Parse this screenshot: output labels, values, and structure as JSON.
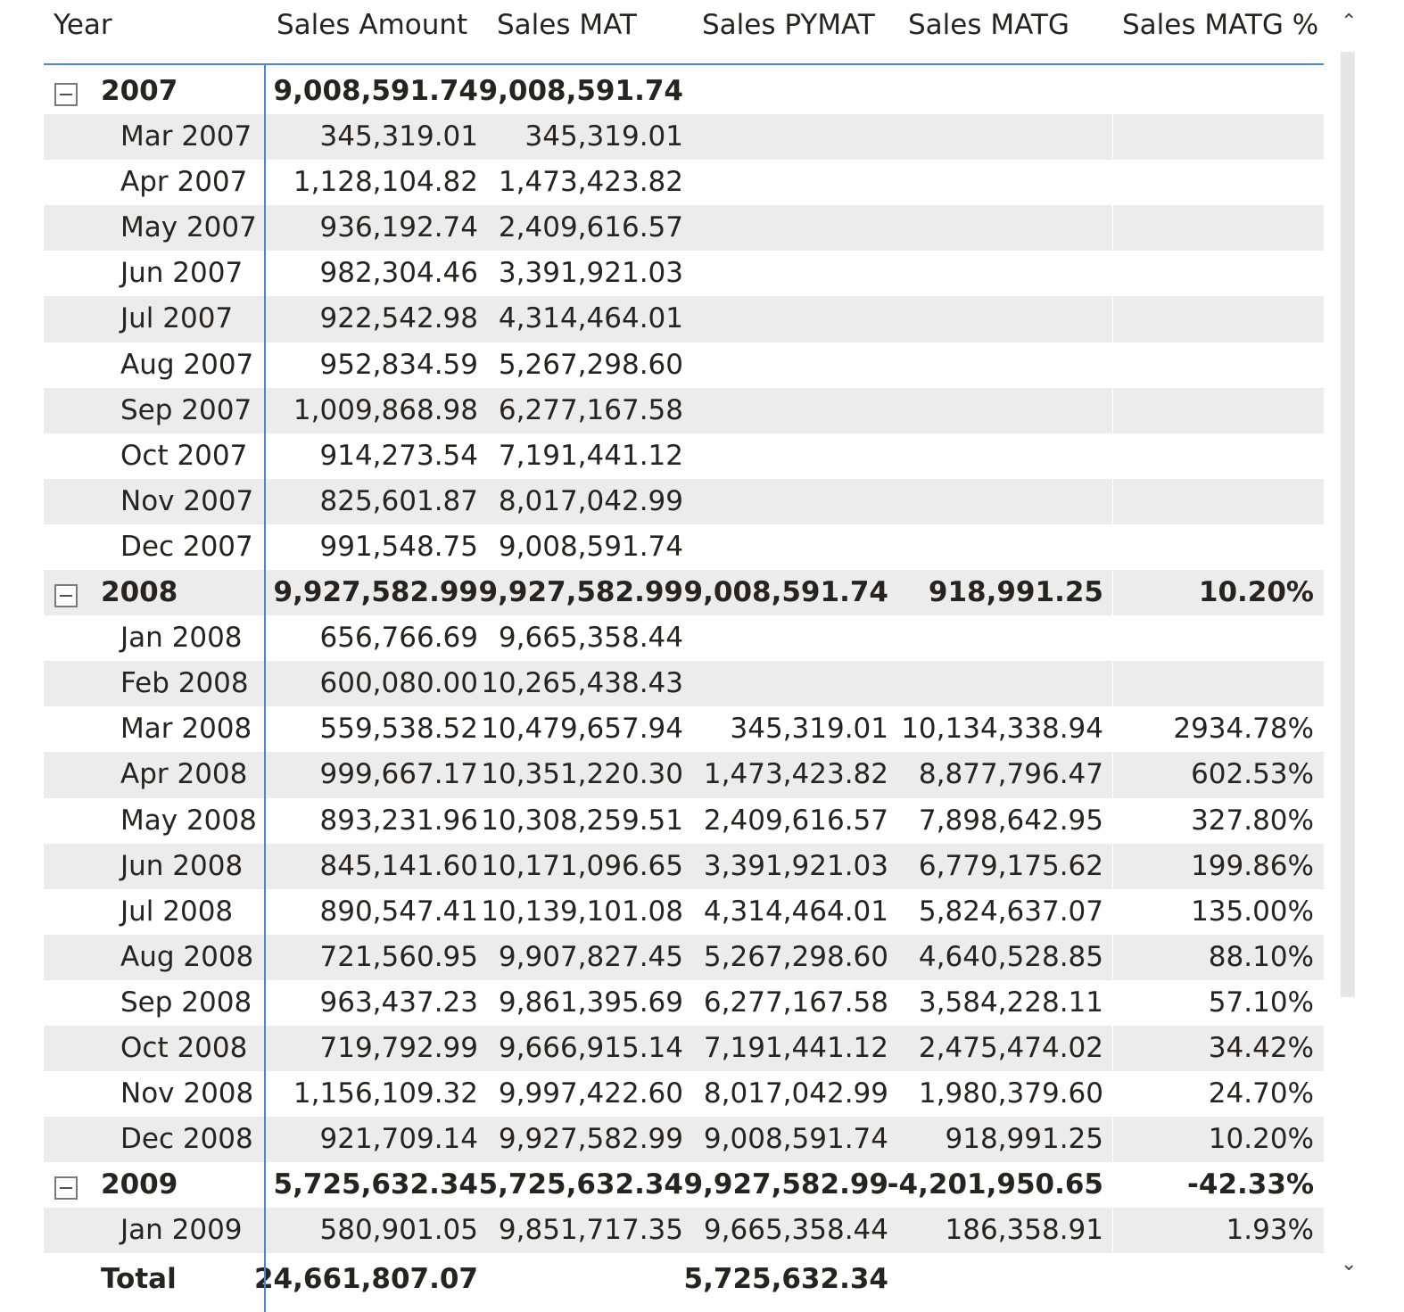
{
  "columns": [
    "Year",
    "Sales Amount",
    "Sales MAT",
    "Sales PYMAT",
    "Sales MATG",
    "Sales MATG %"
  ],
  "rows": [
    {
      "type": "year",
      "label": "2007",
      "amount": "9,008,591.74",
      "mat": "9,008,591.74",
      "pymat": "",
      "matg": "",
      "matgp": ""
    },
    {
      "type": "month",
      "label": "Mar 2007",
      "amount": "345,319.01",
      "mat": "345,319.01",
      "pymat": "",
      "matg": "",
      "matgp": ""
    },
    {
      "type": "month",
      "label": "Apr 2007",
      "amount": "1,128,104.82",
      "mat": "1,473,423.82",
      "pymat": "",
      "matg": "",
      "matgp": ""
    },
    {
      "type": "month",
      "label": "May 2007",
      "amount": "936,192.74",
      "mat": "2,409,616.57",
      "pymat": "",
      "matg": "",
      "matgp": ""
    },
    {
      "type": "month",
      "label": "Jun 2007",
      "amount": "982,304.46",
      "mat": "3,391,921.03",
      "pymat": "",
      "matg": "",
      "matgp": ""
    },
    {
      "type": "month",
      "label": "Jul 2007",
      "amount": "922,542.98",
      "mat": "4,314,464.01",
      "pymat": "",
      "matg": "",
      "matgp": ""
    },
    {
      "type": "month",
      "label": "Aug 2007",
      "amount": "952,834.59",
      "mat": "5,267,298.60",
      "pymat": "",
      "matg": "",
      "matgp": ""
    },
    {
      "type": "month",
      "label": "Sep 2007",
      "amount": "1,009,868.98",
      "mat": "6,277,167.58",
      "pymat": "",
      "matg": "",
      "matgp": ""
    },
    {
      "type": "month",
      "label": "Oct 2007",
      "amount": "914,273.54",
      "mat": "7,191,441.12",
      "pymat": "",
      "matg": "",
      "matgp": ""
    },
    {
      "type": "month",
      "label": "Nov 2007",
      "amount": "825,601.87",
      "mat": "8,017,042.99",
      "pymat": "",
      "matg": "",
      "matgp": ""
    },
    {
      "type": "month",
      "label": "Dec 2007",
      "amount": "991,548.75",
      "mat": "9,008,591.74",
      "pymat": "",
      "matg": "",
      "matgp": ""
    },
    {
      "type": "year",
      "label": "2008",
      "amount": "9,927,582.99",
      "mat": "9,927,582.99",
      "pymat": "9,008,591.74",
      "matg": "918,991.25",
      "matgp": "10.20%"
    },
    {
      "type": "month",
      "label": "Jan 2008",
      "amount": "656,766.69",
      "mat": "9,665,358.44",
      "pymat": "",
      "matg": "",
      "matgp": ""
    },
    {
      "type": "month",
      "label": "Feb 2008",
      "amount": "600,080.00",
      "mat": "10,265,438.43",
      "pymat": "",
      "matg": "",
      "matgp": ""
    },
    {
      "type": "month",
      "label": "Mar 2008",
      "amount": "559,538.52",
      "mat": "10,479,657.94",
      "pymat": "345,319.01",
      "matg": "10,134,338.94",
      "matgp": "2934.78%"
    },
    {
      "type": "month",
      "label": "Apr 2008",
      "amount": "999,667.17",
      "mat": "10,351,220.30",
      "pymat": "1,473,423.82",
      "matg": "8,877,796.47",
      "matgp": "602.53%"
    },
    {
      "type": "month",
      "label": "May 2008",
      "amount": "893,231.96",
      "mat": "10,308,259.51",
      "pymat": "2,409,616.57",
      "matg": "7,898,642.95",
      "matgp": "327.80%"
    },
    {
      "type": "month",
      "label": "Jun 2008",
      "amount": "845,141.60",
      "mat": "10,171,096.65",
      "pymat": "3,391,921.03",
      "matg": "6,779,175.62",
      "matgp": "199.86%"
    },
    {
      "type": "month",
      "label": "Jul 2008",
      "amount": "890,547.41",
      "mat": "10,139,101.08",
      "pymat": "4,314,464.01",
      "matg": "5,824,637.07",
      "matgp": "135.00%"
    },
    {
      "type": "month",
      "label": "Aug 2008",
      "amount": "721,560.95",
      "mat": "9,907,827.45",
      "pymat": "5,267,298.60",
      "matg": "4,640,528.85",
      "matgp": "88.10%"
    },
    {
      "type": "month",
      "label": "Sep 2008",
      "amount": "963,437.23",
      "mat": "9,861,395.69",
      "pymat": "6,277,167.58",
      "matg": "3,584,228.11",
      "matgp": "57.10%"
    },
    {
      "type": "month",
      "label": "Oct 2008",
      "amount": "719,792.99",
      "mat": "9,666,915.14",
      "pymat": "7,191,441.12",
      "matg": "2,475,474.02",
      "matgp": "34.42%"
    },
    {
      "type": "month",
      "label": "Nov 2008",
      "amount": "1,156,109.32",
      "mat": "9,997,422.60",
      "pymat": "8,017,042.99",
      "matg": "1,980,379.60",
      "matgp": "24.70%"
    },
    {
      "type": "month",
      "label": "Dec 2008",
      "amount": "921,709.14",
      "mat": "9,927,582.99",
      "pymat": "9,008,591.74",
      "matg": "918,991.25",
      "matgp": "10.20%"
    },
    {
      "type": "year",
      "label": "2009",
      "amount": "5,725,632.34",
      "mat": "5,725,632.34",
      "pymat": "9,927,582.99",
      "matg": "-4,201,950.65",
      "matgp": "-42.33%"
    },
    {
      "type": "month",
      "label": "Jan 2009",
      "amount": "580,901.05",
      "mat": "9,851,717.35",
      "pymat": "9,665,358.44",
      "matg": "186,358.91",
      "matgp": "1.93%"
    },
    {
      "type": "total",
      "label": "Total",
      "amount": "24,661,807.07",
      "mat": "",
      "pymat": "5,725,632.34",
      "matg": "",
      "matgp": ""
    }
  ],
  "icons": {
    "collapse": "collapse-minus-icon",
    "scroll_up": "scroll-up-icon",
    "scroll_down": "scroll-down-icon"
  },
  "colors": {
    "accent_line": "#4a86d8",
    "row_shade": "#ececec"
  }
}
